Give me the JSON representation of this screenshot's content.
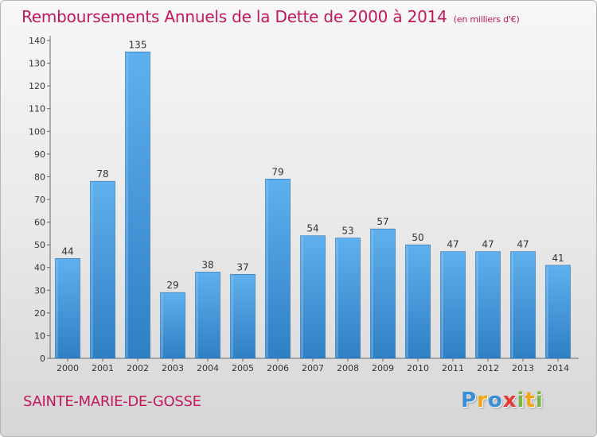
{
  "chart_data": {
    "type": "bar",
    "title": "Remboursements Annuels de la Dette de 2000 à 2014",
    "unit": "(en milliers d'€)",
    "categories": [
      "2000",
      "2001",
      "2002",
      "2003",
      "2004",
      "2005",
      "2006",
      "2007",
      "2008",
      "2009",
      "2010",
      "2011",
      "2012",
      "2013",
      "2014"
    ],
    "values": [
      44,
      78,
      135,
      29,
      38,
      37,
      79,
      54,
      53,
      57,
      50,
      47,
      47,
      47,
      41
    ],
    "ylim": [
      0,
      140
    ],
    "yticks": [
      0,
      10,
      20,
      30,
      40,
      50,
      60,
      70,
      80,
      90,
      100,
      110,
      120,
      130,
      140
    ],
    "grid": false,
    "bar_color": "#4f9fde",
    "title_color": "#c2185b"
  },
  "commune": "SAINTE-MARIE-DE-GOSSE",
  "logo": {
    "letters": [
      "P",
      "r",
      "o",
      "x",
      "i",
      "t",
      "i"
    ],
    "colors": [
      "#3b8ed6",
      "#f2a516",
      "#3b8ed6",
      "#e53935",
      "#7cb342",
      "#f2a516",
      "#7cb342"
    ]
  }
}
